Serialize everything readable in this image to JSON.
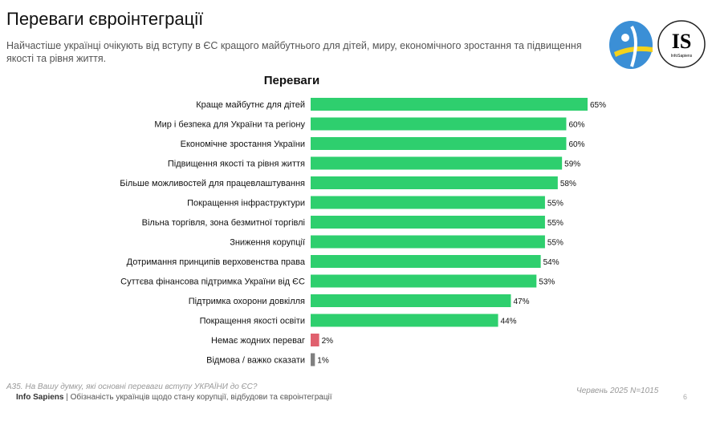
{
  "header": {
    "title": "Переваги євроінтеграції",
    "subtitle": "Найчастіше українці очікують від вступу в ЄС кращого майбутнього для дітей, миру, економічного зростання та підвищення якості та рівня життя.",
    "logo_text": "IS",
    "logo_sub": "InfoSapiens"
  },
  "chart_data": {
    "type": "bar",
    "orientation": "horizontal",
    "title": "Переваги",
    "categories": [
      "Краще майбутнє для дітей",
      "Мир і безпека для України та регіону",
      "Економічне зростання України",
      "Підвищення якості та рівня життя",
      "Більше можливостей для працевлаштування",
      "Покращення інфраструктури",
      "Вільна торгівля, зона безмитної торгівлі",
      "Зниження корупції",
      "Дотримання принципів верховенства права",
      "Суттєва фінансова підтримка України від ЄС",
      "Підтримка охорони довкілля",
      "Покращення якості освіти",
      "Немає жодних переваг",
      "Відмова / важко сказати"
    ],
    "values": [
      65,
      60,
      60,
      59,
      58,
      55,
      55,
      55,
      54,
      53,
      47,
      44,
      2,
      1
    ],
    "colors": [
      "#2ecf6e",
      "#2ecf6e",
      "#2ecf6e",
      "#2ecf6e",
      "#2ecf6e",
      "#2ecf6e",
      "#2ecf6e",
      "#2ecf6e",
      "#2ecf6e",
      "#2ecf6e",
      "#2ecf6e",
      "#2ecf6e",
      "#e0606e",
      "#808080"
    ],
    "unit": "%",
    "xlim": [
      0,
      65
    ]
  },
  "footer": {
    "question": "A35. На Вашу думку, які основні переваги вступу УКРАЇНИ до ЄС?",
    "brand": "Info Sapiens",
    "separator": " | ",
    "text": "Обізнаність українців щодо стану корупції, відбудови та євроінтеграції",
    "date": "Червень 2025 N=1015",
    "page": "6"
  }
}
